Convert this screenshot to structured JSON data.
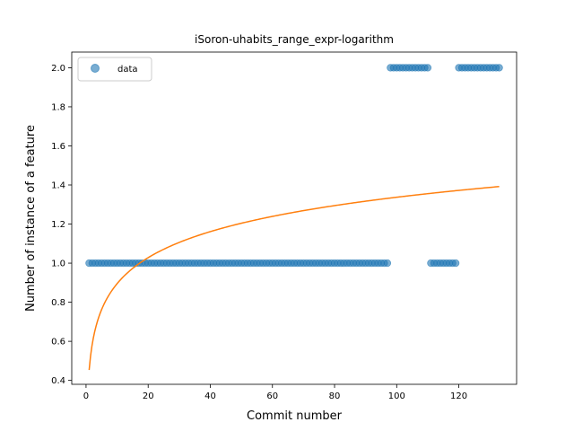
{
  "chart_data": {
    "type": "scatter",
    "title": "iSoron-uhabits_range_expr-logarithm",
    "xlabel": "Commit number",
    "ylabel": "Number of instance of a feature",
    "xlim": [
      -4.6,
      138.6
    ],
    "ylim": [
      0.38,
      2.08
    ],
    "xticks": [
      0,
      20,
      40,
      60,
      80,
      100,
      120
    ],
    "xtick_labels": [
      "0",
      "20",
      "40",
      "60",
      "80",
      "100",
      "120"
    ],
    "yticks": [
      0.4,
      0.6,
      0.8,
      1.0,
      1.2,
      1.4,
      1.6,
      1.8,
      2.0
    ],
    "ytick_labels": [
      "0.4",
      "0.6",
      "0.8",
      "1.0",
      "1.2",
      "1.4",
      "1.6",
      "1.8",
      "2.0"
    ],
    "grid": false,
    "legend": {
      "placement": "top-left",
      "entries": [
        "data"
      ]
    },
    "series": [
      {
        "name": "data",
        "kind": "scatter",
        "color": "#1f77b4",
        "opacity": 0.6,
        "segments": [
          {
            "x_from": 1,
            "x_to": 97,
            "y": 1.0
          },
          {
            "x_from": 98,
            "x_to": 110,
            "y": 2.0
          },
          {
            "x_from": 111,
            "x_to": 119,
            "y": 1.0
          },
          {
            "x_from": 120,
            "x_to": 133,
            "y": 2.0
          }
        ]
      },
      {
        "kind": "line",
        "color": "#ff7f0e",
        "model": "log",
        "a": 0.453,
        "b": 0.192,
        "x_from": 1,
        "x_to": 133
      }
    ]
  }
}
